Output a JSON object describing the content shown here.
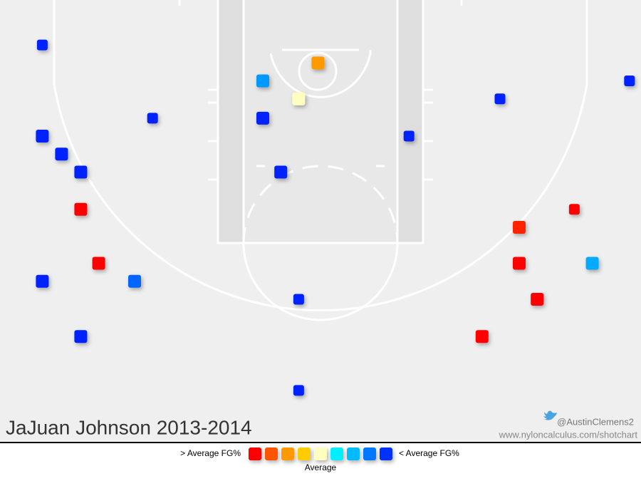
{
  "chart_data": {
    "type": "shotchart",
    "title": "JaJuan Johnson 2013-2014",
    "credit": "@AustinClemens2",
    "url": "www.nyloncalculus.com/shotchart",
    "xlim": [
      -25,
      25
    ],
    "ylim": [
      0,
      34.4
    ],
    "shots": {
      "x": [
        -21.7,
        -13.1,
        -21.7,
        -20.2,
        -18.7,
        -18.7,
        -17.3,
        -21.7,
        -14.5,
        -18.7,
        -1.7,
        -1.7,
        -3.1,
        -4.5,
        -4.5,
        -1.7,
        -0.2,
        6.9,
        14.0,
        24.1,
        19.8,
        15.5,
        15.5,
        21.2,
        16.9,
        12.6
      ],
      "y": [
        3.5,
        9.2,
        10.6,
        12.0,
        13.4,
        16.3,
        20.5,
        21.9,
        21.9,
        26.2,
        23.3,
        30.4,
        13.4,
        9.2,
        6.3,
        7.7,
        4.9,
        10.6,
        7.7,
        6.3,
        16.3,
        17.7,
        20.5,
        20.5,
        23.3,
        26.2
      ],
      "attempts": [
        1,
        1,
        2,
        2,
        2,
        2,
        2,
        2,
        2,
        2,
        1,
        1,
        2,
        2,
        2,
        2,
        2,
        1,
        1,
        1,
        1,
        2,
        2,
        2,
        2,
        2
      ],
      "colors": [
        "#0022ff",
        "#0022ff",
        "#0022ff",
        "#0022ff",
        "#0022ff",
        "#ff0000",
        "#ff0000",
        "#0022ff",
        "#0066ff",
        "#0022ff",
        "#0022ff",
        "#0022ff",
        "#0022ff",
        "#0022ff",
        "#0099ff",
        "#ffffc0",
        "#ff9900",
        "#0022ff",
        "#0022ff",
        "#0022ff",
        "#ff0000",
        "#ff2200",
        "#ff0000",
        "#00aaff",
        "#ff0000",
        "#ff0000"
      ]
    },
    "legend": {
      "high": "> Average FG%",
      "low": "< Average FG%",
      "middle": "Average",
      "colors": [
        "#ff0000",
        "#ff5500",
        "#ff9900",
        "#ffcc00",
        "#ffffc0",
        "#00eeff",
        "#00bbff",
        "#0077ff",
        "#0033ff"
      ]
    }
  }
}
